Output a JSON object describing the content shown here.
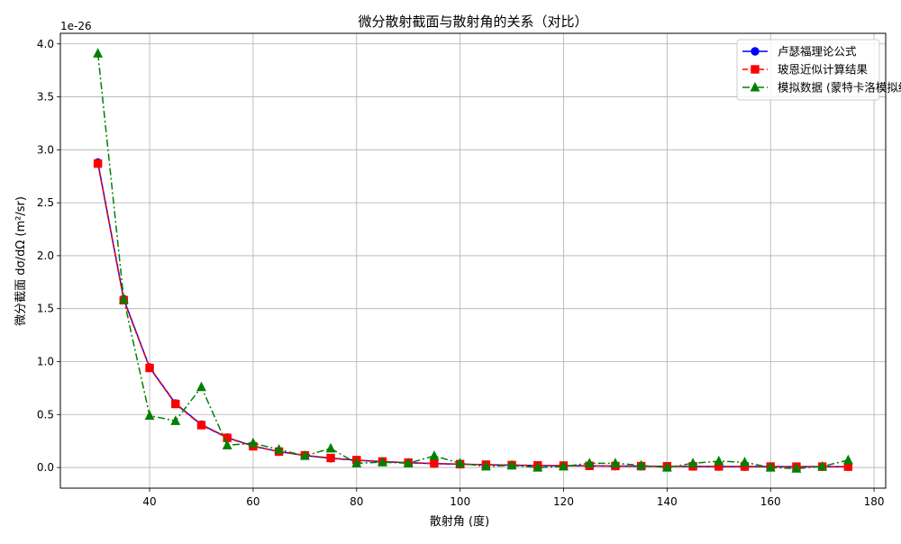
{
  "chart_data": {
    "type": "line",
    "title": "微分散射截面与散射角的关系（对比）",
    "xlabel": "散射角 (度)",
    "ylabel": "微分截面 dσ/dΩ (m²/sr)",
    "y_exponent_label": "1e-26",
    "xlim": [
      22.75,
      182.25
    ],
    "ylim": [
      -0.195,
      4.1
    ],
    "grid": true,
    "legend_position": "top-right",
    "x": [
      30,
      35,
      40,
      45,
      50,
      55,
      60,
      65,
      70,
      75,
      80,
      85,
      90,
      95,
      100,
      105,
      110,
      115,
      120,
      125,
      130,
      135,
      140,
      145,
      150,
      155,
      160,
      165,
      170,
      175
    ],
    "xticks": [
      {
        "value": 40,
        "label": "40"
      },
      {
        "value": 60,
        "label": "60"
      },
      {
        "value": 80,
        "label": "80"
      },
      {
        "value": 100,
        "label": "100"
      },
      {
        "value": 120,
        "label": "120"
      },
      {
        "value": 140,
        "label": "140"
      },
      {
        "value": 160,
        "label": "160"
      },
      {
        "value": 180,
        "label": "180"
      }
    ],
    "yticks": [
      {
        "value": 0.0,
        "label": "0.0"
      },
      {
        "value": 0.5,
        "label": "0.5"
      },
      {
        "value": 1.0,
        "label": "1.0"
      },
      {
        "value": 1.5,
        "label": "1.5"
      },
      {
        "value": 2.0,
        "label": "2.0"
      },
      {
        "value": 2.5,
        "label": "2.5"
      },
      {
        "value": 3.0,
        "label": "3.0"
      },
      {
        "value": 3.5,
        "label": "3.5"
      },
      {
        "value": 4.0,
        "label": "4.0"
      }
    ],
    "series": [
      {
        "name": "卢瑟福理论公式",
        "color": "#0000ff",
        "marker": "circle",
        "linestyle": "solid",
        "values": [
          2.88,
          1.59,
          0.945,
          0.605,
          0.405,
          0.283,
          0.203,
          0.15,
          0.113,
          0.087,
          0.069,
          0.055,
          0.045,
          0.037,
          0.031,
          0.026,
          0.022,
          0.019,
          0.017,
          0.015,
          0.013,
          0.012,
          0.011,
          0.01,
          0.009,
          0.009,
          0.008,
          0.008,
          0.008,
          0.008
        ]
      },
      {
        "name": "玻恩近似计算结果",
        "color": "#ff0000",
        "marker": "square",
        "linestyle": "dashed",
        "values": [
          2.87,
          1.58,
          0.94,
          0.6,
          0.4,
          0.28,
          0.2,
          0.15,
          0.115,
          0.09,
          0.07,
          0.057,
          0.046,
          0.038,
          0.032,
          0.027,
          0.023,
          0.02,
          0.018,
          0.016,
          0.014,
          0.013,
          0.012,
          0.011,
          0.01,
          0.009,
          0.009,
          0.008,
          0.008,
          0.008
        ]
      },
      {
        "name": "模拟数据 (蒙特卡洛模拟结果)",
        "color": "#008000",
        "marker": "triangle",
        "linestyle": "dashdot",
        "values": [
          3.91,
          1.59,
          0.49,
          0.44,
          0.76,
          0.21,
          0.23,
          0.17,
          0.11,
          0.18,
          0.04,
          0.05,
          0.04,
          0.11,
          0.04,
          0.01,
          0.02,
          0.0,
          0.01,
          0.04,
          0.04,
          0.02,
          0.0,
          0.04,
          0.06,
          0.05,
          0.0,
          -0.01,
          0.01,
          0.07
        ]
      }
    ]
  }
}
